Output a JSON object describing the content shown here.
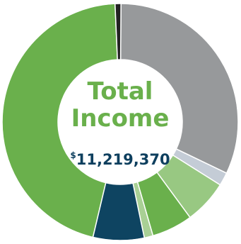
{
  "chart_data": {
    "type": "pie",
    "donut": true,
    "title_line1": "Total",
    "title_line2": "Income",
    "total_symbol": "$",
    "total_value": "11,219,370",
    "slices": [
      {
        "value": 32.0,
        "color": "#97999b"
      },
      {
        "value": 1.8,
        "color": "#c4ccd6"
      },
      {
        "value": 6.0,
        "color": "#98c882"
      },
      {
        "value": 5.6,
        "color": "#6ab04c"
      },
      {
        "value": 1.2,
        "color": "#a9d095"
      },
      {
        "value": 7.0,
        "color": "#0e4461"
      },
      {
        "value": 45.6,
        "color": "#6ab04c"
      },
      {
        "value": 0.8,
        "color": "#222222"
      }
    ]
  }
}
